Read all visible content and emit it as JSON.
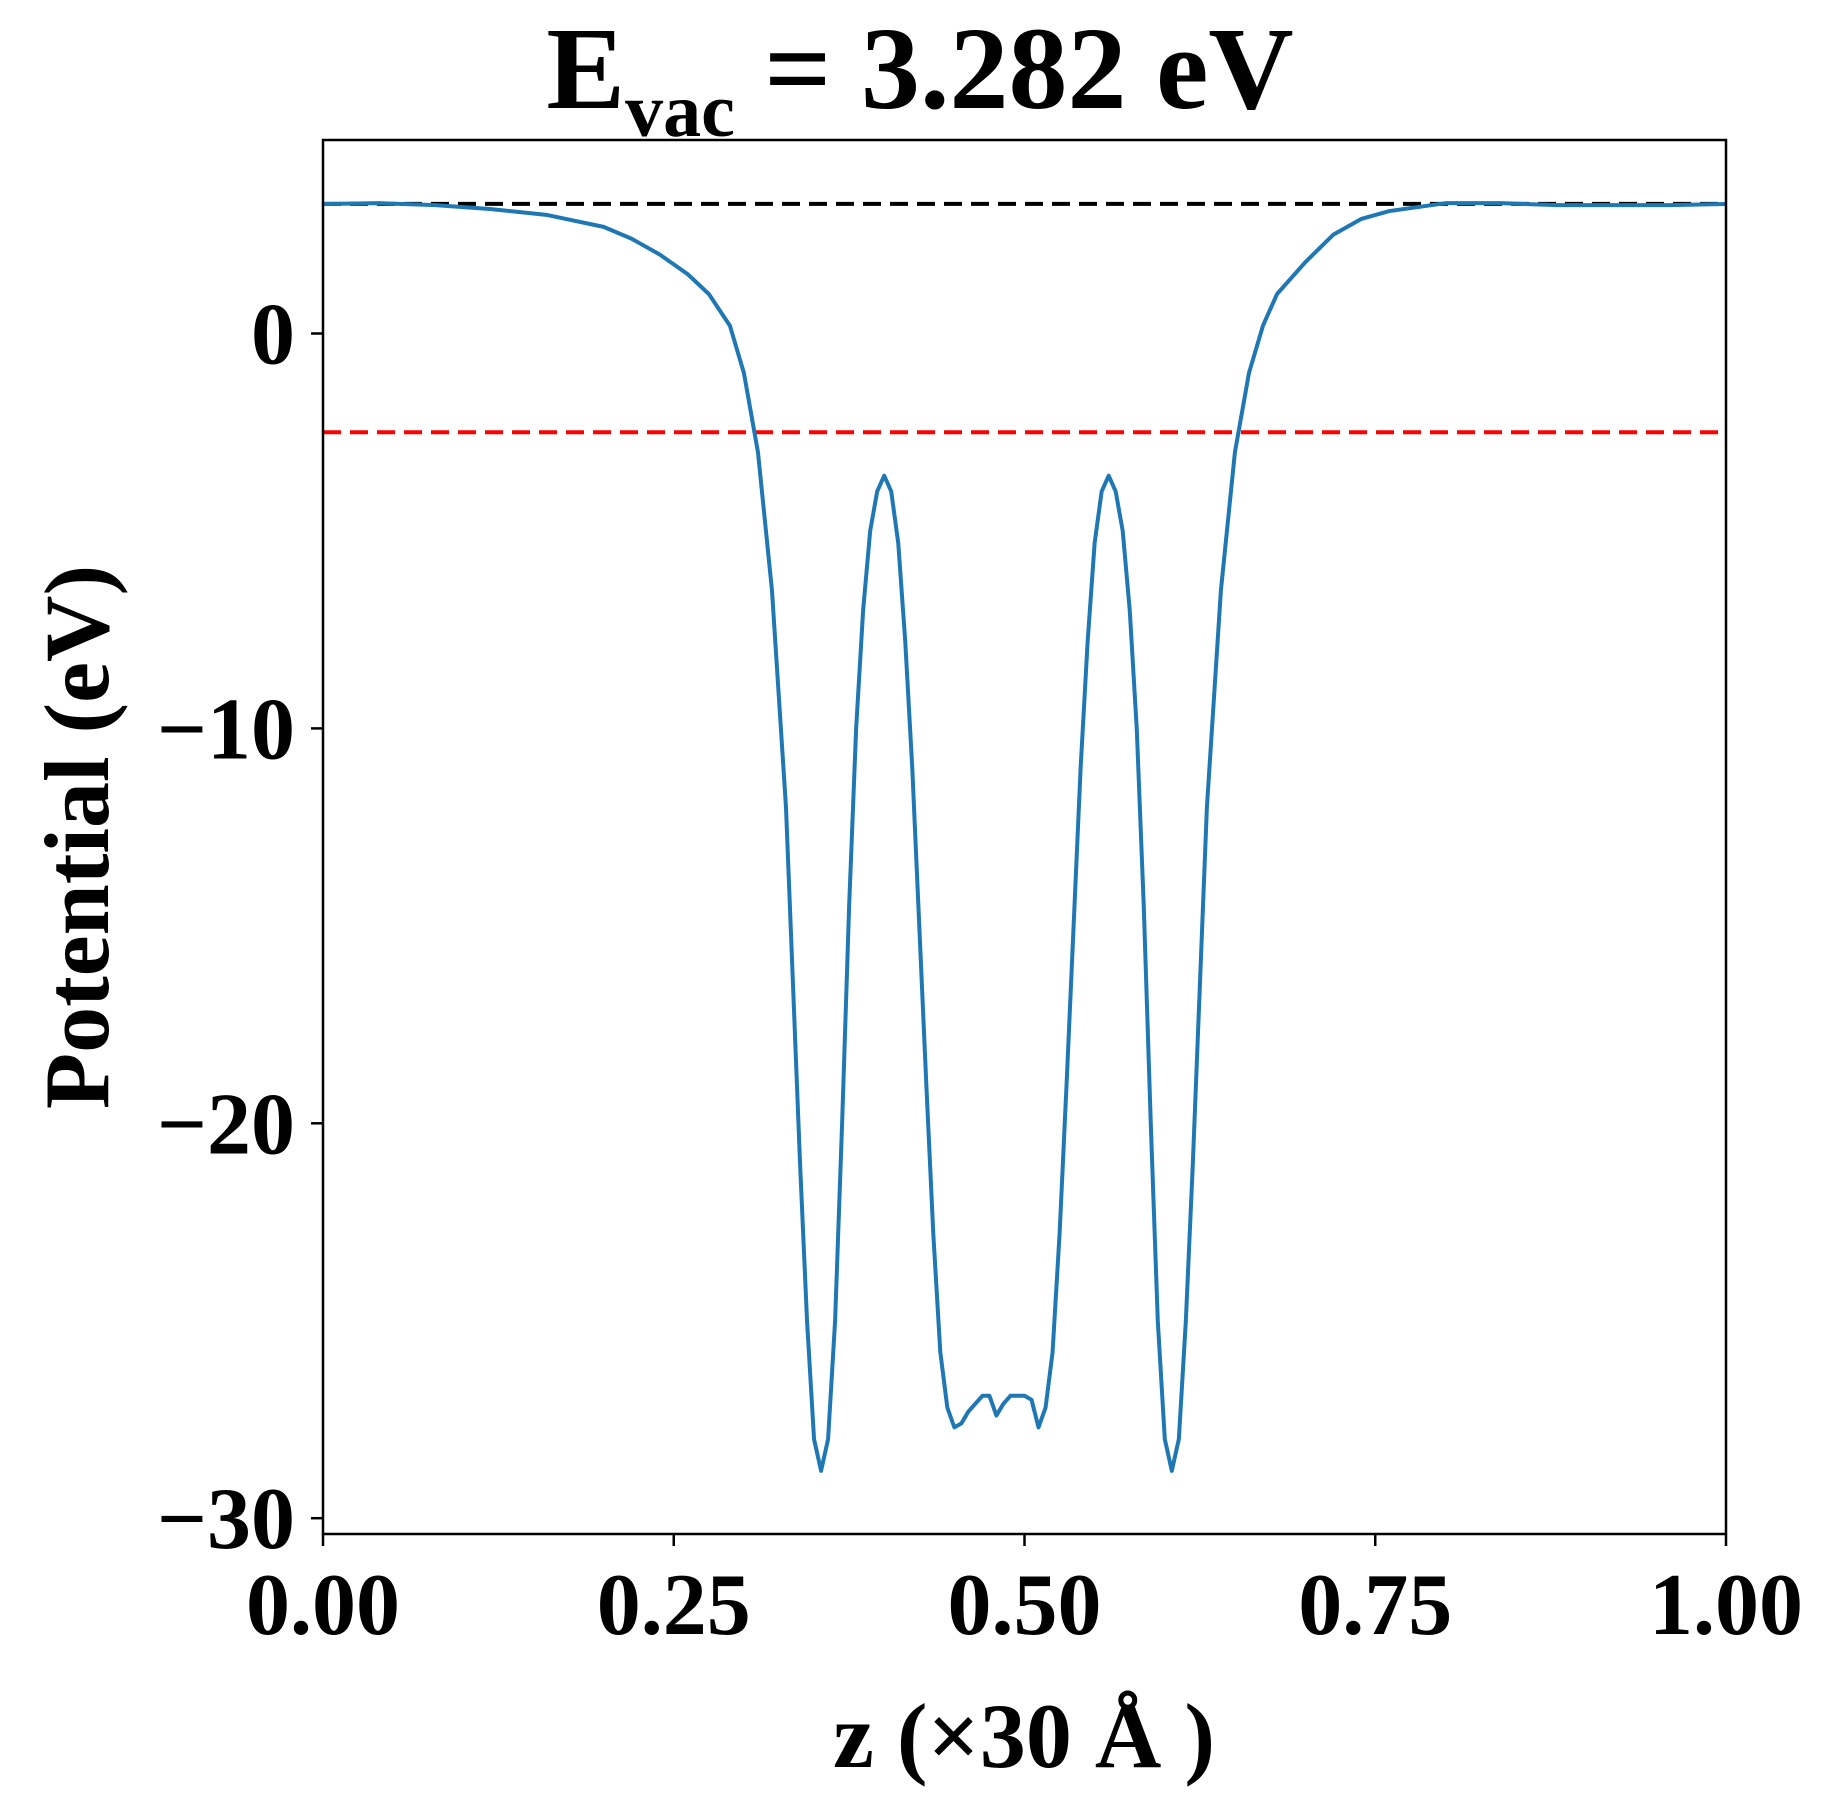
{
  "chart_data": {
    "type": "line",
    "title": {
      "main": "E",
      "subscript": "vac",
      "rest": " = 3.282 eV"
    },
    "xlabel": "z (×30 Å )",
    "ylabel": "Potential (eV)",
    "xlim": [
      0.0,
      1.0
    ],
    "ylim": [
      -30.4,
      4.9
    ],
    "x_ticks": [
      0.0,
      0.25,
      0.5,
      0.75,
      1.0
    ],
    "x_tick_labels": [
      "0.00",
      "0.25",
      "0.50",
      "0.75",
      "1.00"
    ],
    "y_ticks": [
      0,
      -10,
      -20,
      -30
    ],
    "y_tick_labels": [
      "0",
      "−10",
      "−20",
      "−30"
    ],
    "grid": false,
    "reference_lines": [
      {
        "y": 3.282,
        "color": "#000000",
        "style": "dashed"
      },
      {
        "y": -2.5,
        "color": "#ff0000",
        "style": "dashed"
      }
    ],
    "series": [
      {
        "color": "#1f77b4",
        "x": [
          0.0,
          0.04,
          0.08,
          0.12,
          0.16,
          0.2,
          0.22,
          0.24,
          0.26,
          0.275,
          0.29,
          0.3,
          0.31,
          0.32,
          0.33,
          0.335,
          0.34,
          0.345,
          0.35,
          0.355,
          0.36,
          0.365,
          0.37,
          0.375,
          0.38,
          0.385,
          0.39,
          0.395,
          0.4,
          0.405,
          0.41,
          0.415,
          0.42,
          0.425,
          0.43,
          0.435,
          0.44,
          0.445,
          0.45,
          0.455,
          0.46,
          0.465,
          0.47,
          0.475,
          0.48,
          0.485,
          0.49,
          0.495,
          0.5,
          0.505,
          0.51,
          0.515,
          0.52,
          0.525,
          0.53,
          0.535,
          0.54,
          0.545,
          0.55,
          0.555,
          0.56,
          0.565,
          0.57,
          0.575,
          0.58,
          0.585,
          0.59,
          0.595,
          0.6,
          0.605,
          0.61,
          0.615,
          0.62,
          0.625,
          0.63,
          0.64,
          0.65,
          0.66,
          0.67,
          0.68,
          0.7,
          0.72,
          0.74,
          0.76,
          0.8,
          0.84,
          0.88,
          0.92,
          0.96,
          1.0
        ],
        "y": [
          3.28,
          3.3,
          3.25,
          3.15,
          3.0,
          2.7,
          2.4,
          2.0,
          1.5,
          1.0,
          0.2,
          -1.0,
          -3.0,
          -6.5,
          -12.0,
          -16.5,
          -21.0,
          -25.0,
          -28.0,
          -28.8,
          -28.0,
          -25.0,
          -20.0,
          -14.5,
          -10.0,
          -7.0,
          -5.0,
          -4.0,
          -3.6,
          -4.0,
          -5.3,
          -7.8,
          -11.0,
          -15.0,
          -19.0,
          -22.8,
          -25.8,
          -27.2,
          -27.7,
          -27.6,
          -27.3,
          -27.1,
          -26.9,
          -26.9,
          -27.4,
          -27.1,
          -26.9,
          -26.9,
          -26.9,
          -27.0,
          -27.7,
          -27.2,
          -25.8,
          -22.8,
          -19.0,
          -15.0,
          -11.0,
          -7.8,
          -5.3,
          -4.0,
          -3.6,
          -4.0,
          -5.0,
          -7.0,
          -10.0,
          -14.5,
          -20.0,
          -25.0,
          -28.0,
          -28.8,
          -28.0,
          -25.0,
          -21.0,
          -16.5,
          -12.0,
          -6.5,
          -3.0,
          -1.0,
          0.2,
          1.0,
          1.8,
          2.5,
          2.9,
          3.1,
          3.3,
          3.3,
          3.25,
          3.25,
          3.25,
          3.28
        ]
      }
    ]
  }
}
